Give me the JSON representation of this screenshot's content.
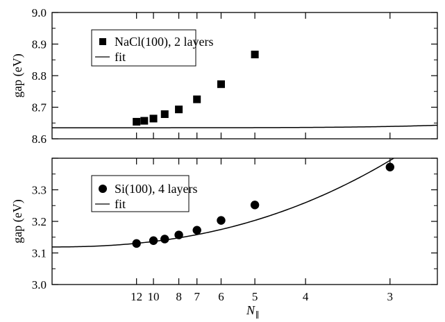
{
  "chart_data": [
    {
      "type": "scatter",
      "ylabel": "gap (eV)",
      "xlim": [
        0,
        0.38
      ],
      "ylim": [
        8.6,
        9.0
      ],
      "yticks": [
        "8.6",
        "8.7",
        "8.8",
        "8.9",
        "9.0"
      ],
      "grid": false,
      "legend_position": "upper-left",
      "series": [
        {
          "name": "NaCl(100), 2 layers",
          "marker": "square",
          "color": "#000000",
          "points": [
            {
              "x": 0.0833,
              "y": 8.654
            },
            {
              "x": 0.0909,
              "y": 8.657
            },
            {
              "x": 0.1,
              "y": 8.664
            },
            {
              "x": 0.1111,
              "y": 8.678
            },
            {
              "x": 0.125,
              "y": 8.693
            },
            {
              "x": 0.1429,
              "y": 8.725
            },
            {
              "x": 0.1667,
              "y": 8.773
            },
            {
              "x": 0.2,
              "y": 8.867
            }
          ]
        },
        {
          "name": "fit",
          "style": "line",
          "color": "#000000",
          "fit": {
            "a": 8.635,
            "b": 1.0,
            "c": 5.0
          }
        }
      ]
    },
    {
      "type": "scatter",
      "ylabel": "gap (eV)",
      "xlabel": "N∥",
      "xlim": [
        0,
        0.38
      ],
      "ylim": [
        3.0,
        3.4
      ],
      "yticks": [
        "3.0",
        "3.1",
        "3.2",
        "3.3"
      ],
      "xticks": [
        {
          "label": "12",
          "x": 0.0833
        },
        {
          "label": "10",
          "x": 0.1
        },
        {
          "label": "8",
          "x": 0.125
        },
        {
          "label": "7",
          "x": 0.1429
        },
        {
          "label": "6",
          "x": 0.1667
        },
        {
          "label": "5",
          "x": 0.2
        },
        {
          "label": "4",
          "x": 0.25
        },
        {
          "label": "3",
          "x": 0.3333
        }
      ],
      "grid": false,
      "legend_position": "upper-left",
      "series": [
        {
          "name": "Si(100), 4 layers",
          "marker": "circle",
          "color": "#000000",
          "points": [
            {
              "x": 0.0833,
              "y": 3.13
            },
            {
              "x": 0.1,
              "y": 3.139
            },
            {
              "x": 0.1111,
              "y": 3.144
            },
            {
              "x": 0.125,
              "y": 3.157
            },
            {
              "x": 0.1429,
              "y": 3.172
            },
            {
              "x": 0.1667,
              "y": 3.203
            },
            {
              "x": 0.2,
              "y": 3.252
            },
            {
              "x": 0.3333,
              "y": 3.372
            }
          ]
        },
        {
          "name": "fit",
          "style": "line",
          "color": "#000000",
          "fit": {
            "a": 3.119,
            "b": 2.8,
            "c": 2.5,
            "d": 0.85
          }
        }
      ]
    }
  ]
}
